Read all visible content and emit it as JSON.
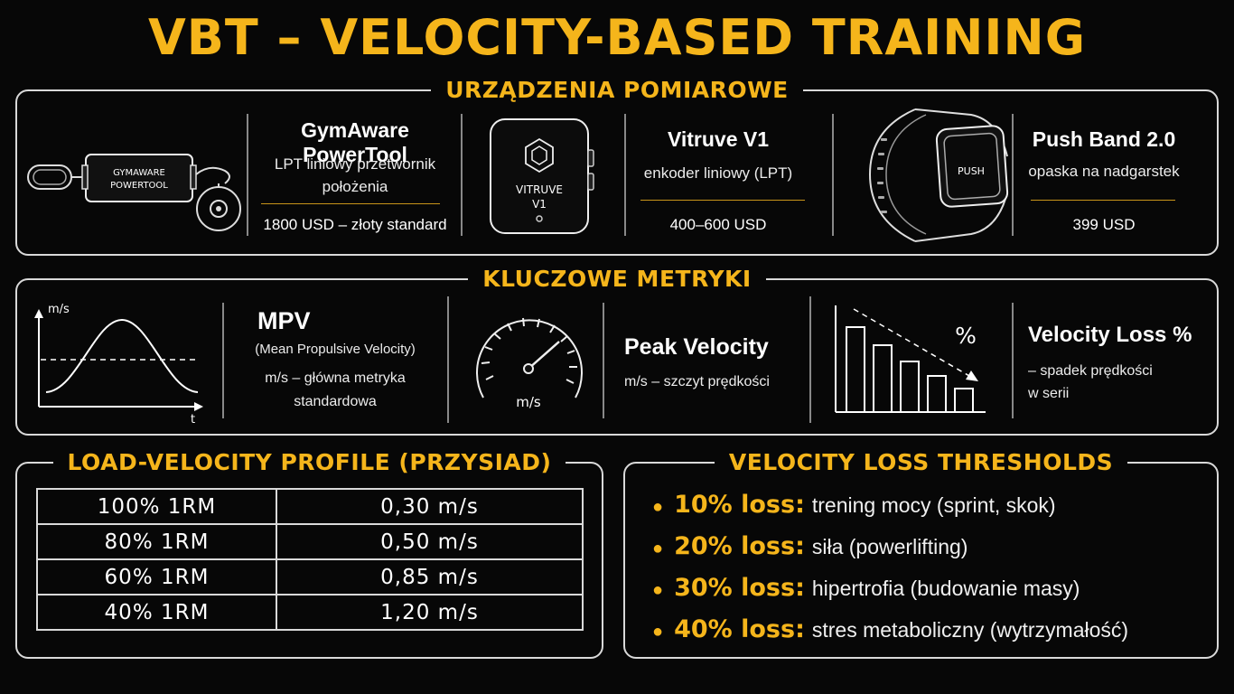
{
  "title": "VBT – VELOCITY-BASED TRAINING",
  "devices_section": {
    "heading": "URZĄDZENIA POMIAROWE",
    "devices": [
      {
        "name": "GymAware PowerTool",
        "desc_line1": "LPT liniowy przetwornik",
        "desc_line2": "położenia",
        "price": "1800 USD – złoty standard",
        "device_label_line1": "GYMAWARE",
        "device_label_line2": "POWERTOOL"
      },
      {
        "name": "Vitruve V1",
        "desc_line1": "enkoder liniowy (LPT)",
        "price": "400–600 USD",
        "device_label_line1": "VITRUVE",
        "device_label_line2": "V1"
      },
      {
        "name": "Push Band 2.0",
        "desc_line1": "opaska na nadgarstek",
        "price": "399 USD",
        "device_label_line1": "PUSH"
      }
    ]
  },
  "metrics_section": {
    "heading": "KLUCZOWE METRYKI",
    "metrics": [
      {
        "title": "MPV",
        "subtitle": "(Mean Propulsive Velocity)",
        "desc_line1": "m/s – główna metryka",
        "desc_line2": "standardowa",
        "axis_y": "m/s",
        "axis_x": "t"
      },
      {
        "title": "Peak Velocity",
        "desc_line1": "m/s – szczyt prędkości",
        "gauge_label": "m/s"
      },
      {
        "title": "Velocity Loss %",
        "desc_line1": "– spadek prędkości",
        "desc_line2": "w serii",
        "chart_symbol": "%"
      }
    ]
  },
  "load_velocity": {
    "heading": "LOAD-VELOCITY PROFILE (PRZYSIAD)",
    "rows": [
      {
        "load": "100% 1RM",
        "velocity": "0,30 m/s"
      },
      {
        "load": "80% 1RM",
        "velocity": "0,50 m/s"
      },
      {
        "load": "60% 1RM",
        "velocity": "0,85 m/s"
      },
      {
        "load": "40% 1RM",
        "velocity": "1,20 m/s"
      }
    ]
  },
  "thresholds": {
    "heading": "VELOCITY LOSS THRESHOLDS",
    "items": [
      {
        "key": "10% loss:",
        "text": "trening mocy (sprint, skok)"
      },
      {
        "key": "20% loss:",
        "text": "siła (powerlifting)"
      },
      {
        "key": "30% loss:",
        "text": "hipertrofia (budowanie masy)"
      },
      {
        "key": "40% loss:",
        "text": "stres metaboliczny (wytrzymałość)"
      }
    ]
  },
  "colors": {
    "accent": "#f5b51b",
    "background": "#070707",
    "line": "#d9d9d9"
  }
}
